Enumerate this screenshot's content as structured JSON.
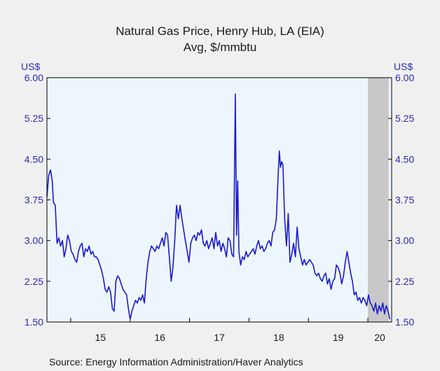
{
  "chart_data": {
    "type": "line",
    "title": "Natural Gas Price, Henry Hub, LA (EIA)",
    "subtitle": "Avg, $/mmbtu",
    "ylabel_left": "US$",
    "ylabel_right": "US$",
    "source": "Source:  Energy Information Administration/Haver Analytics",
    "ylim": [
      1.5,
      6.0
    ],
    "yticks": [
      "6.00",
      "5.25",
      "4.50",
      "3.75",
      "3.00",
      "2.25",
      "1.50"
    ],
    "xlim": [
      2014.6,
      2020.4
    ],
    "xticks": [
      {
        "label": "15",
        "value": 2015.5
      },
      {
        "label": "16",
        "value": 2016.5
      },
      {
        "label": "17",
        "value": 2017.5
      },
      {
        "label": "18",
        "value": 2018.5
      },
      {
        "label": "19",
        "value": 2019.5
      },
      {
        "label": "20",
        "value": 2020.2
      }
    ],
    "year_boundaries": [
      2015,
      2016,
      2017,
      2018,
      2019,
      2020
    ],
    "recession_shading": [
      2020.0,
      2020.35
    ],
    "color": "#1a1ad0",
    "shade_color": "#c8c8c8",
    "plot_bg": "#eef6fd",
    "series": [
      {
        "values": [
          [
            2014.6,
            3.8
          ],
          [
            2014.63,
            4.2
          ],
          [
            2014.66,
            4.3
          ],
          [
            2014.69,
            4.1
          ],
          [
            2014.71,
            3.7
          ],
          [
            2014.74,
            3.65
          ],
          [
            2014.77,
            2.95
          ],
          [
            2014.8,
            3.05
          ],
          [
            2014.83,
            2.9
          ],
          [
            2014.86,
            3.0
          ],
          [
            2014.89,
            2.7
          ],
          [
            2014.92,
            2.85
          ],
          [
            2014.95,
            3.1
          ],
          [
            2014.98,
            3.0
          ],
          [
            2015.01,
            2.8
          ],
          [
            2015.04,
            2.75
          ],
          [
            2015.07,
            2.65
          ],
          [
            2015.1,
            2.6
          ],
          [
            2015.13,
            2.8
          ],
          [
            2015.16,
            2.9
          ],
          [
            2015.19,
            2.95
          ],
          [
            2015.22,
            2.7
          ],
          [
            2015.25,
            2.85
          ],
          [
            2015.28,
            2.8
          ],
          [
            2015.31,
            2.9
          ],
          [
            2015.34,
            2.75
          ],
          [
            2015.37,
            2.8
          ],
          [
            2015.4,
            2.7
          ],
          [
            2015.43,
            2.7
          ],
          [
            2015.46,
            2.65
          ],
          [
            2015.49,
            2.55
          ],
          [
            2015.52,
            2.45
          ],
          [
            2015.55,
            2.3
          ],
          [
            2015.58,
            2.1
          ],
          [
            2015.61,
            2.05
          ],
          [
            2015.64,
            2.15
          ],
          [
            2015.67,
            2.05
          ],
          [
            2015.7,
            1.75
          ],
          [
            2015.73,
            1.7
          ],
          [
            2015.76,
            2.25
          ],
          [
            2015.79,
            2.35
          ],
          [
            2015.82,
            2.3
          ],
          [
            2015.85,
            2.2
          ],
          [
            2015.88,
            2.1
          ],
          [
            2015.91,
            2.05
          ],
          [
            2015.94,
            2.0
          ],
          [
            2015.97,
            1.75
          ],
          [
            2016.0,
            1.55
          ],
          [
            2016.03,
            1.7
          ],
          [
            2016.06,
            1.8
          ],
          [
            2016.09,
            1.9
          ],
          [
            2016.12,
            1.85
          ],
          [
            2016.15,
            1.95
          ],
          [
            2016.18,
            1.9
          ],
          [
            2016.21,
            2.0
          ],
          [
            2016.24,
            1.85
          ],
          [
            2016.27,
            2.3
          ],
          [
            2016.3,
            2.6
          ],
          [
            2016.33,
            2.8
          ],
          [
            2016.36,
            2.9
          ],
          [
            2016.39,
            2.85
          ],
          [
            2016.42,
            2.8
          ],
          [
            2016.45,
            2.9
          ],
          [
            2016.48,
            2.85
          ],
          [
            2016.51,
            2.95
          ],
          [
            2016.54,
            3.05
          ],
          [
            2016.57,
            2.9
          ],
          [
            2016.6,
            3.15
          ],
          [
            2016.63,
            3.1
          ],
          [
            2016.66,
            2.7
          ],
          [
            2016.69,
            2.25
          ],
          [
            2016.72,
            2.5
          ],
          [
            2016.75,
            3.0
          ],
          [
            2016.78,
            3.65
          ],
          [
            2016.81,
            3.4
          ],
          [
            2016.84,
            3.65
          ],
          [
            2016.87,
            3.4
          ],
          [
            2016.9,
            3.2
          ],
          [
            2016.93,
            3.0
          ],
          [
            2016.96,
            2.8
          ],
          [
            2016.99,
            2.6
          ],
          [
            2017.02,
            2.95
          ],
          [
            2017.05,
            3.05
          ],
          [
            2017.08,
            3.1
          ],
          [
            2017.11,
            3.0
          ],
          [
            2017.14,
            3.15
          ],
          [
            2017.17,
            3.1
          ],
          [
            2017.2,
            3.2
          ],
          [
            2017.23,
            2.95
          ],
          [
            2017.26,
            2.9
          ],
          [
            2017.29,
            3.0
          ],
          [
            2017.32,
            2.85
          ],
          [
            2017.35,
            2.95
          ],
          [
            2017.38,
            3.05
          ],
          [
            2017.41,
            2.85
          ],
          [
            2017.44,
            3.15
          ],
          [
            2017.47,
            2.9
          ],
          [
            2017.5,
            3.0
          ],
          [
            2017.53,
            2.8
          ],
          [
            2017.56,
            2.95
          ],
          [
            2017.59,
            2.85
          ],
          [
            2017.62,
            2.7
          ],
          [
            2017.65,
            3.05
          ],
          [
            2017.68,
            3.0
          ],
          [
            2017.71,
            2.75
          ],
          [
            2017.74,
            2.7
          ],
          [
            2017.77,
            5.7
          ],
          [
            2017.79,
            3.1
          ],
          [
            2017.81,
            4.1
          ],
          [
            2017.83,
            2.8
          ],
          [
            2017.86,
            2.55
          ],
          [
            2017.89,
            2.7
          ],
          [
            2017.92,
            2.65
          ],
          [
            2017.95,
            2.8
          ],
          [
            2017.98,
            2.7
          ],
          [
            2018.01,
            2.75
          ],
          [
            2018.04,
            2.8
          ],
          [
            2018.07,
            2.85
          ],
          [
            2018.1,
            2.75
          ],
          [
            2018.13,
            2.9
          ],
          [
            2018.16,
            3.0
          ],
          [
            2018.19,
            2.85
          ],
          [
            2018.22,
            2.9
          ],
          [
            2018.25,
            2.8
          ],
          [
            2018.28,
            2.85
          ],
          [
            2018.31,
            2.95
          ],
          [
            2018.34,
            3.0
          ],
          [
            2018.37,
            2.9
          ],
          [
            2018.4,
            3.15
          ],
          [
            2018.43,
            3.2
          ],
          [
            2018.46,
            3.4
          ],
          [
            2018.49,
            4.2
          ],
          [
            2018.51,
            4.65
          ],
          [
            2018.53,
            4.35
          ],
          [
            2018.55,
            4.45
          ],
          [
            2018.57,
            4.4
          ],
          [
            2018.6,
            3.4
          ],
          [
            2018.63,
            2.9
          ],
          [
            2018.66,
            3.5
          ],
          [
            2018.69,
            2.6
          ],
          [
            2018.72,
            2.75
          ],
          [
            2018.75,
            2.95
          ],
          [
            2018.78,
            2.7
          ],
          [
            2018.81,
            3.25
          ],
          [
            2018.84,
            2.85
          ],
          [
            2018.87,
            2.7
          ],
          [
            2018.9,
            2.55
          ],
          [
            2018.93,
            2.65
          ],
          [
            2018.96,
            2.55
          ],
          [
            2018.99,
            2.6
          ],
          [
            2019.02,
            2.65
          ],
          [
            2019.05,
            2.6
          ],
          [
            2019.08,
            2.55
          ],
          [
            2019.11,
            2.4
          ],
          [
            2019.14,
            2.35
          ],
          [
            2019.17,
            2.4
          ],
          [
            2019.2,
            2.3
          ],
          [
            2019.23,
            2.25
          ],
          [
            2019.26,
            2.35
          ],
          [
            2019.29,
            2.4
          ],
          [
            2019.32,
            2.2
          ],
          [
            2019.35,
            2.3
          ],
          [
            2019.38,
            2.1
          ],
          [
            2019.41,
            2.25
          ],
          [
            2019.44,
            2.3
          ],
          [
            2019.47,
            2.55
          ],
          [
            2019.5,
            2.5
          ],
          [
            2019.53,
            2.4
          ],
          [
            2019.56,
            2.2
          ],
          [
            2019.59,
            2.35
          ],
          [
            2019.62,
            2.6
          ],
          [
            2019.65,
            2.8
          ],
          [
            2019.68,
            2.6
          ],
          [
            2019.71,
            2.4
          ],
          [
            2019.74,
            2.25
          ],
          [
            2019.77,
            2.0
          ],
          [
            2019.8,
            2.05
          ],
          [
            2019.83,
            1.9
          ],
          [
            2019.86,
            1.95
          ],
          [
            2019.89,
            1.85
          ],
          [
            2019.92,
            1.95
          ],
          [
            2019.95,
            1.9
          ],
          [
            2019.98,
            1.8
          ],
          [
            2020.01,
            2.0
          ],
          [
            2020.04,
            1.85
          ],
          [
            2020.07,
            1.8
          ],
          [
            2020.1,
            1.7
          ],
          [
            2020.13,
            1.85
          ],
          [
            2020.16,
            1.65
          ],
          [
            2020.19,
            1.8
          ],
          [
            2020.22,
            1.7
          ],
          [
            2020.25,
            1.85
          ],
          [
            2020.28,
            1.65
          ],
          [
            2020.31,
            1.8
          ],
          [
            2020.34,
            1.7
          ],
          [
            2020.37,
            1.55
          ]
        ]
      }
    ]
  }
}
